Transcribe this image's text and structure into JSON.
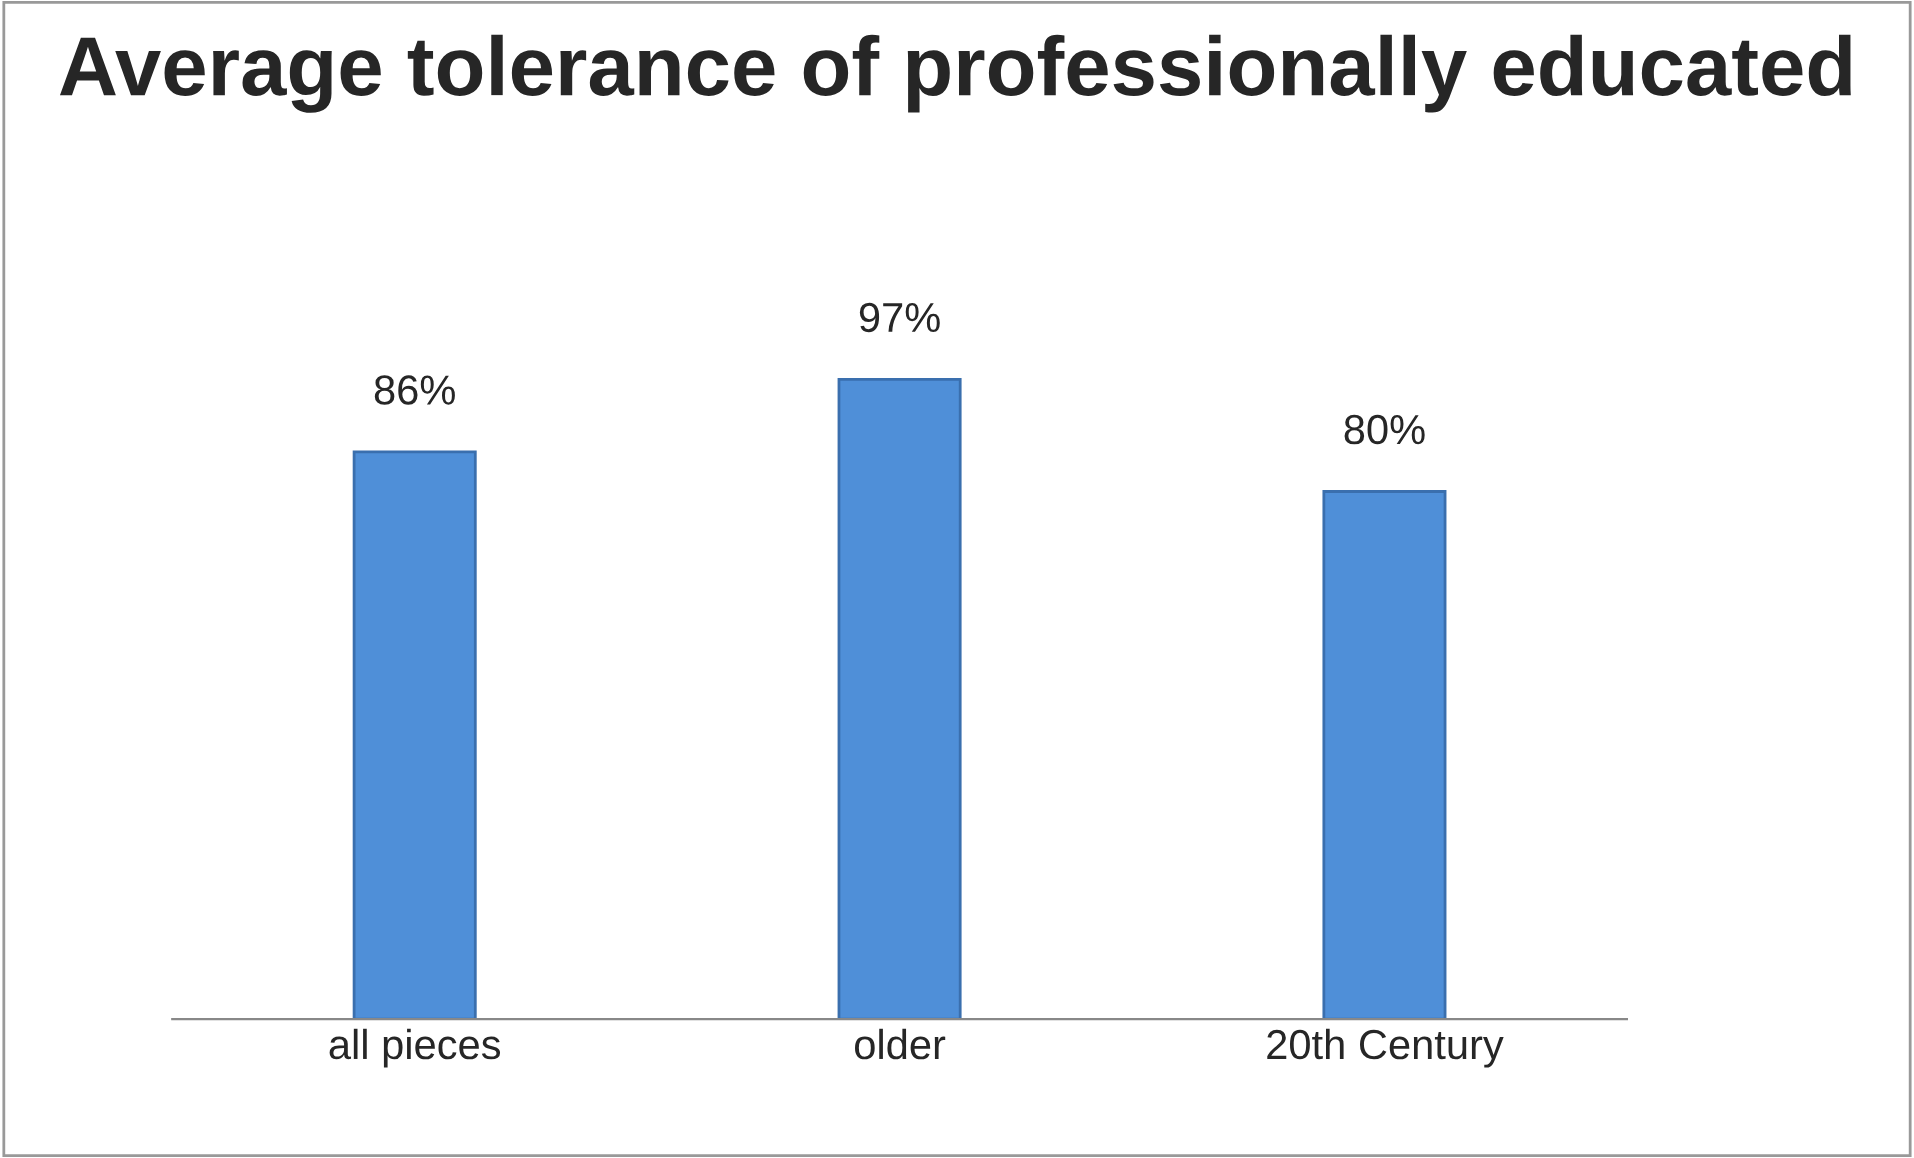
{
  "chart_data": {
    "type": "bar",
    "title": "Average tolerance of professionally educated",
    "categories": [
      "all pieces",
      "older",
      "20th Century"
    ],
    "values": [
      86,
      97,
      80
    ],
    "value_labels": [
      "86%",
      "97%",
      "80%"
    ],
    "color": "#4f8fd8",
    "grid": false,
    "legend": false
  }
}
